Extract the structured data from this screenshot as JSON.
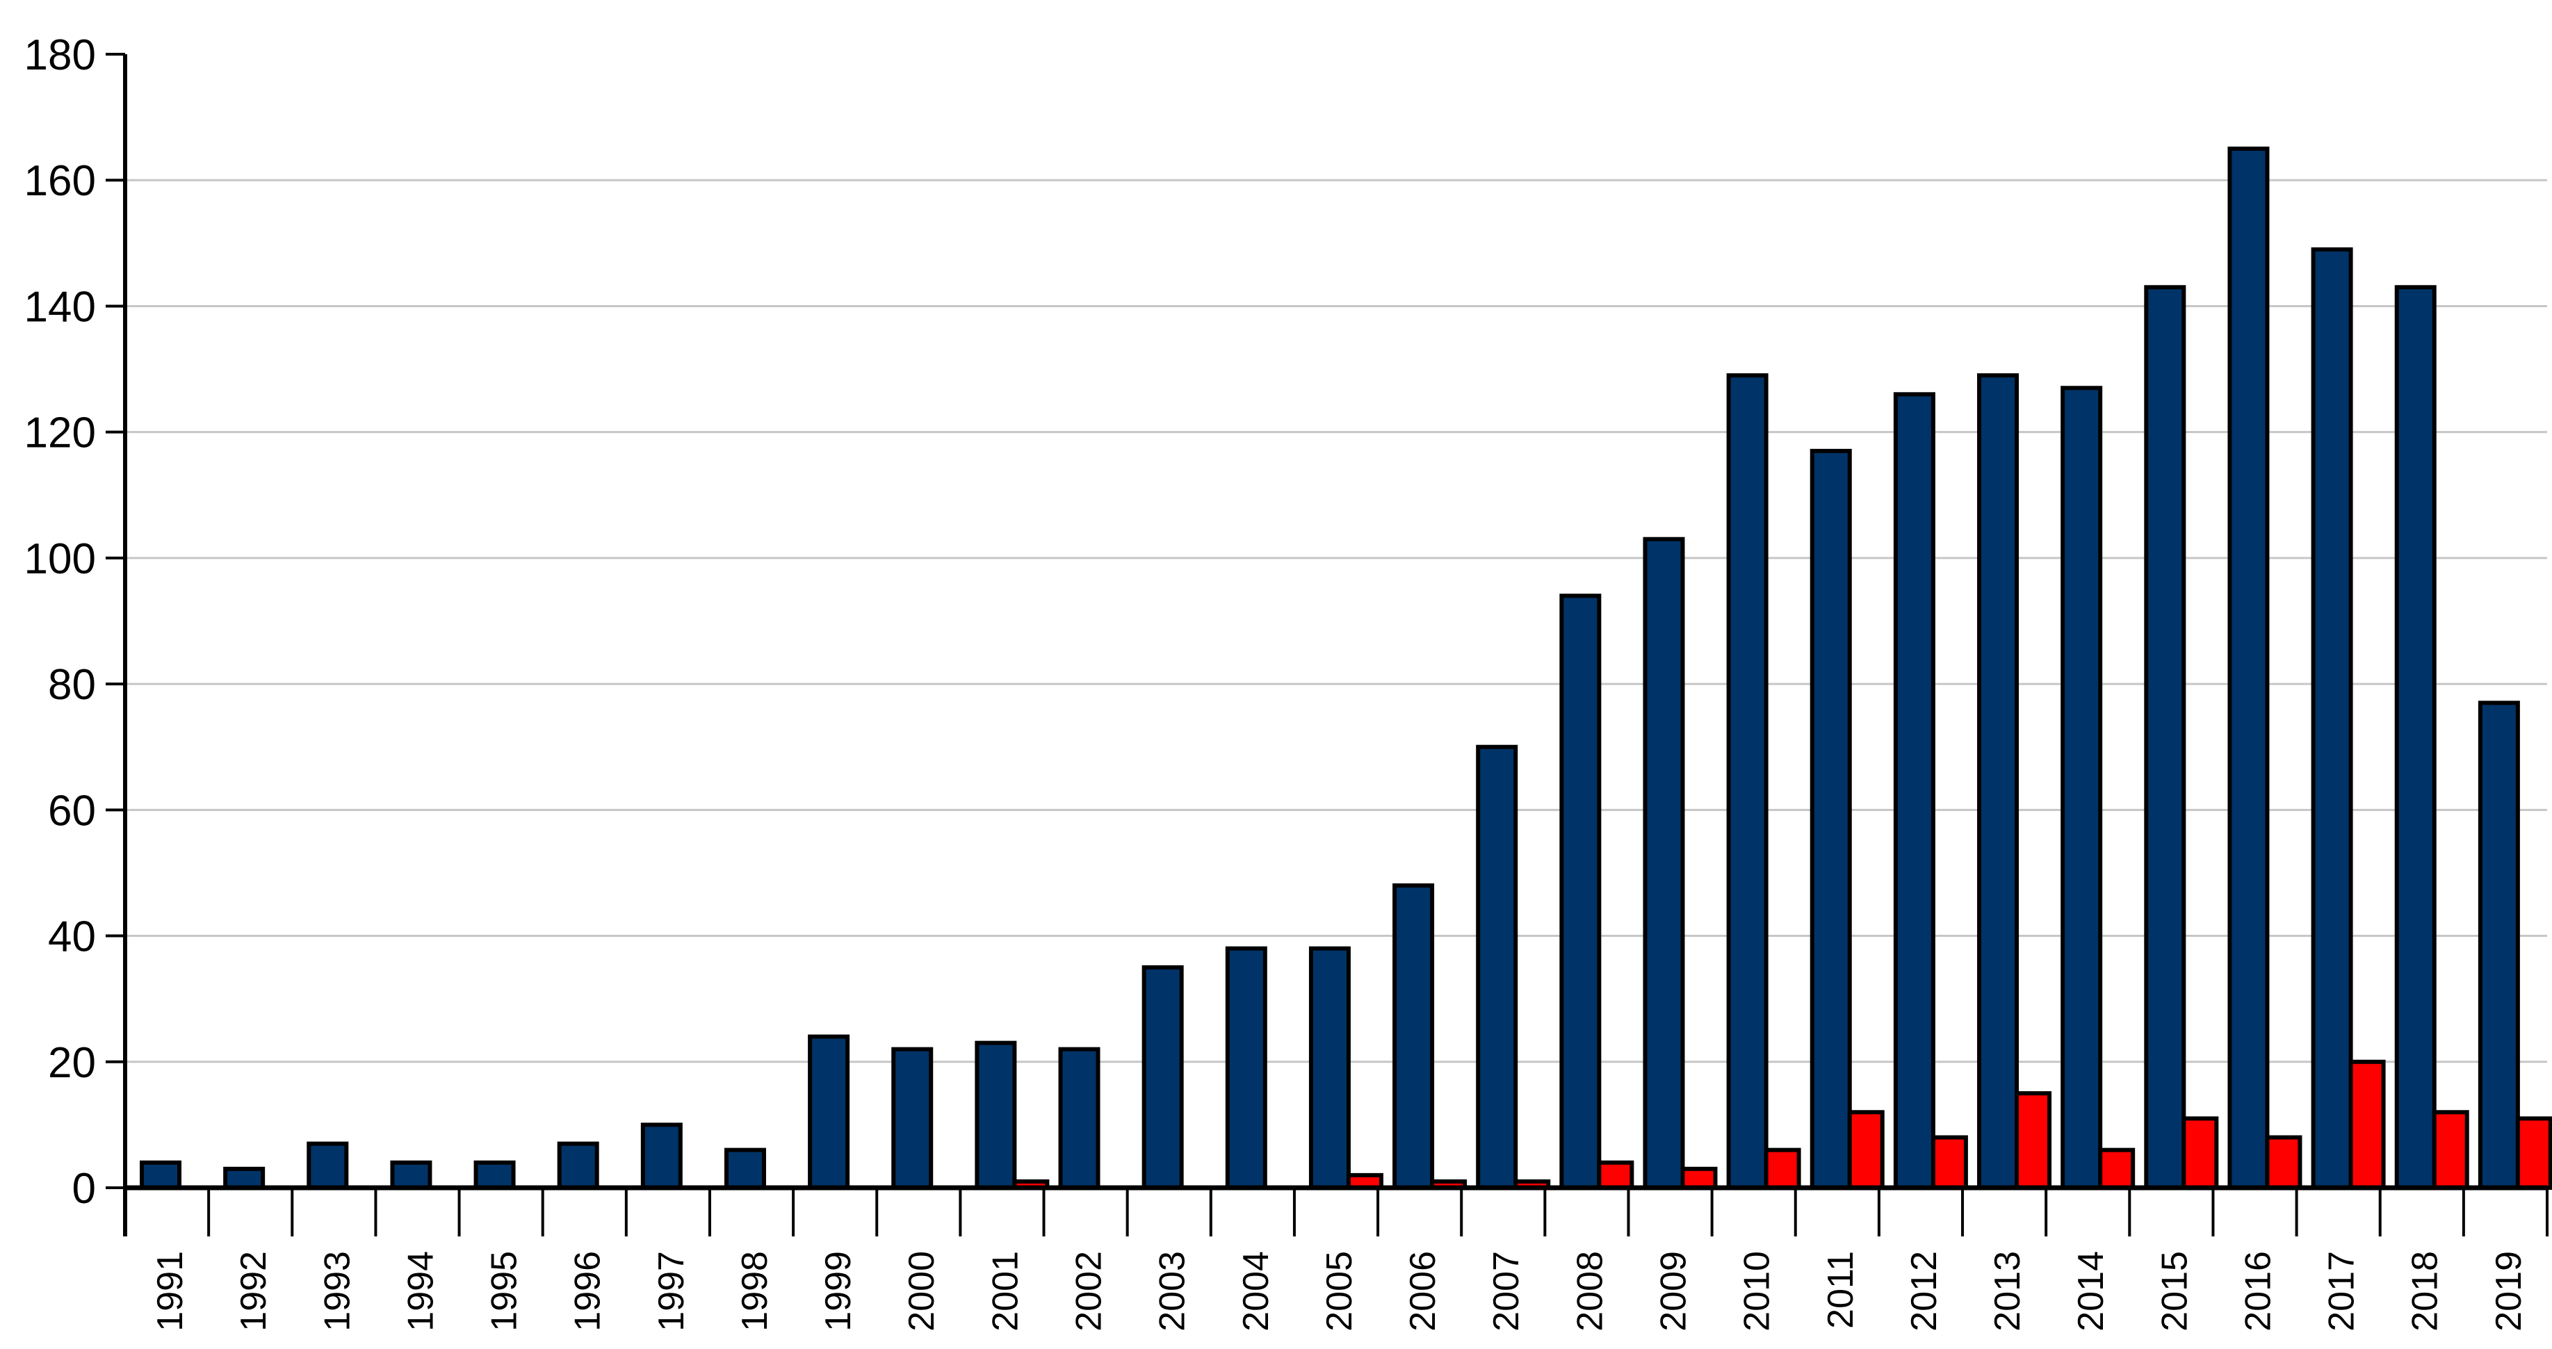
{
  "chart_data": {
    "type": "bar",
    "title": "",
    "xlabel": "",
    "ylabel": "",
    "legend": "none",
    "grid": "horizontal",
    "background_color": "#FFFFFF",
    "gridline_color": "#C6C6C6",
    "axis_color": "#000000",
    "bar_border_color": "#000000",
    "x_tick_label_rotation_deg": -90,
    "ylim": [
      0,
      180
    ],
    "yticks": [
      0,
      20,
      40,
      60,
      80,
      100,
      120,
      140,
      160,
      180
    ],
    "categories": [
      "1991",
      "1992",
      "1993",
      "1994",
      "1995",
      "1996",
      "1997",
      "1998",
      "1999",
      "2000",
      "2001",
      "2002",
      "2003",
      "2004",
      "2005",
      "2006",
      "2007",
      "2008",
      "2009",
      "2010",
      "2011",
      "2012",
      "2013",
      "2014",
      "2015",
      "2016",
      "2017",
      "2018",
      "2019"
    ],
    "series": [
      {
        "name": "dark-blue-series",
        "color": "#003468",
        "values": [
          4,
          3,
          7,
          4,
          4,
          7,
          10,
          6,
          24,
          22,
          23,
          22,
          35,
          38,
          38,
          48,
          70,
          94,
          103,
          129,
          117,
          126,
          129,
          127,
          143,
          165,
          149,
          143,
          77
        ]
      },
      {
        "name": "red-series",
        "color": "#FF0000",
        "values": [
          0,
          0,
          0,
          0,
          0,
          0,
          0,
          0,
          0,
          0,
          1,
          0,
          0,
          0,
          2,
          1,
          1,
          4,
          3,
          6,
          12,
          8,
          15,
          6,
          11,
          8,
          20,
          12,
          11
        ]
      }
    ]
  }
}
